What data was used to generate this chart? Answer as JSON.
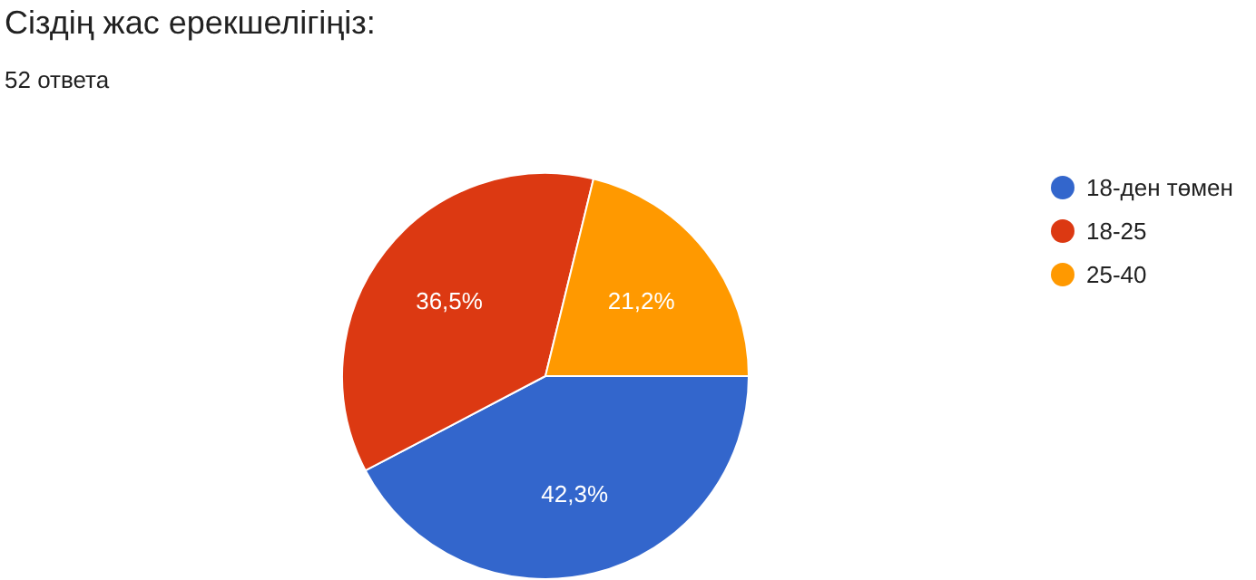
{
  "chart_data": {
    "type": "pie",
    "title": "Сіздің жас ерекшелігіңіз:",
    "subtitle": "52 ответа",
    "categories": [
      "18-ден төмен",
      "18-25",
      "25-40"
    ],
    "values": [
      42.3,
      36.5,
      21.2
    ],
    "colors": [
      "#3366cc",
      "#dc3912",
      "#ff9900"
    ],
    "value_labels": [
      "42,3%",
      "36,5%",
      "21,2%"
    ],
    "legend": "right"
  }
}
